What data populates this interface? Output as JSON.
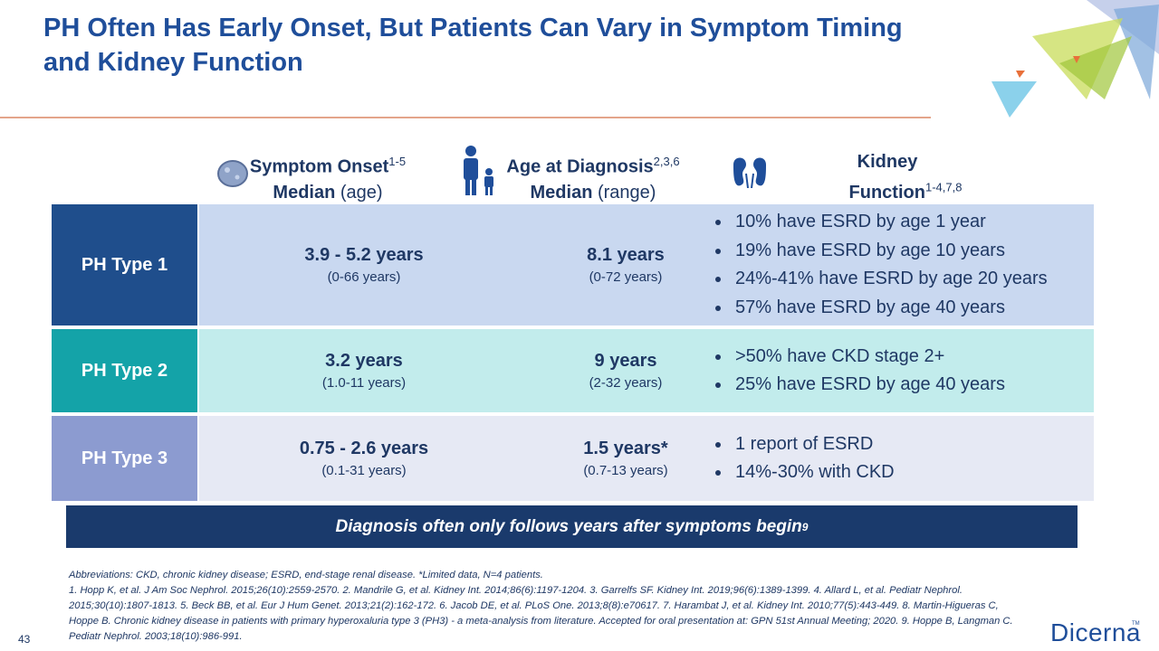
{
  "title": "PH Often Has Early Onset, But Patients Can Vary in Symptom Timing and Kidney Function",
  "headers": [
    {
      "main": "Symptom Onset",
      "sup": "1-5",
      "bold2": "Median",
      "rest2": "(age)"
    },
    {
      "main": "Age at Diagnosis",
      "sup": "2,3,6",
      "bold2": "Median",
      "rest2": "(range)"
    },
    {
      "main": "Kidney",
      "bold2": "Function",
      "sup": "1-4,7,8"
    }
  ],
  "rows": [
    {
      "label": "PH Type 1",
      "onset": "3.9 - 5.2 years",
      "onset_range": "(0-66 years)",
      "diagnosis": "8.1 years",
      "diagnosis_range": "(0-72 years)",
      "kidney": [
        "10% have ESRD by age 1 year",
        "19% have ESRD by age 10 years",
        "24%-41% have ESRD by age 20 years",
        "57% have ESRD by age 40 years"
      ]
    },
    {
      "label": "PH Type 2",
      "onset": "3.2 years",
      "onset_range": "(1.0-11 years)",
      "diagnosis": "9 years",
      "diagnosis_range": "(2-32 years)",
      "kidney": [
        ">50% have CKD stage 2+",
        "25% have ESRD by age 40 years"
      ]
    },
    {
      "label": "PH Type 3",
      "onset": "0.75 - 2.6 years",
      "onset_range": "(0.1-31 years)",
      "diagnosis": "1.5 years*",
      "diagnosis_range": "(0.7-13 years)",
      "kidney": [
        "1 report of ESRD",
        "14%-30% with CKD"
      ]
    }
  ],
  "banner": {
    "text": "Diagnosis often only follows years after symptoms begin",
    "sup": "9"
  },
  "footnotes": [
    "Abbreviations: CKD, chronic kidney disease; ESRD, end-stage renal disease. *Limited data, N=4 patients.",
    "1. Hopp K, et al. J Am Soc Nephrol. 2015;26(10):2559-2570. 2. Mandrile G, et al. Kidney Int. 2014;86(6):1197-1204. 3. Garrelfs SF. Kidney Int. 2019;96(6):1389-1399. 4. Allard L, et al. Pediatr Nephrol. 2015;30(10):1807-1813. 5. Beck BB, et al. Eur J Hum Genet. 2013;21(2):162-172. 6. Jacob DE, et al. PLoS One. 2013;8(8):e70617. 7. Harambat J, et al. Kidney Int. 2010;77(5):443-449. 8. Martin-Higueras C, Hoppe B. Chronic kidney disease in patients with primary hyperoxaluria type 3 (PH3) - a meta-analysis from literature. Accepted for oral presentation at: GPN 51st Annual Meeting; 2020. 9. Hoppe B, Langman C. Pediatr Nephrol. 2003;18(10):986-991."
  ],
  "page_number": "43",
  "logo": {
    "name": "Dicerna",
    "tm": "TM"
  }
}
